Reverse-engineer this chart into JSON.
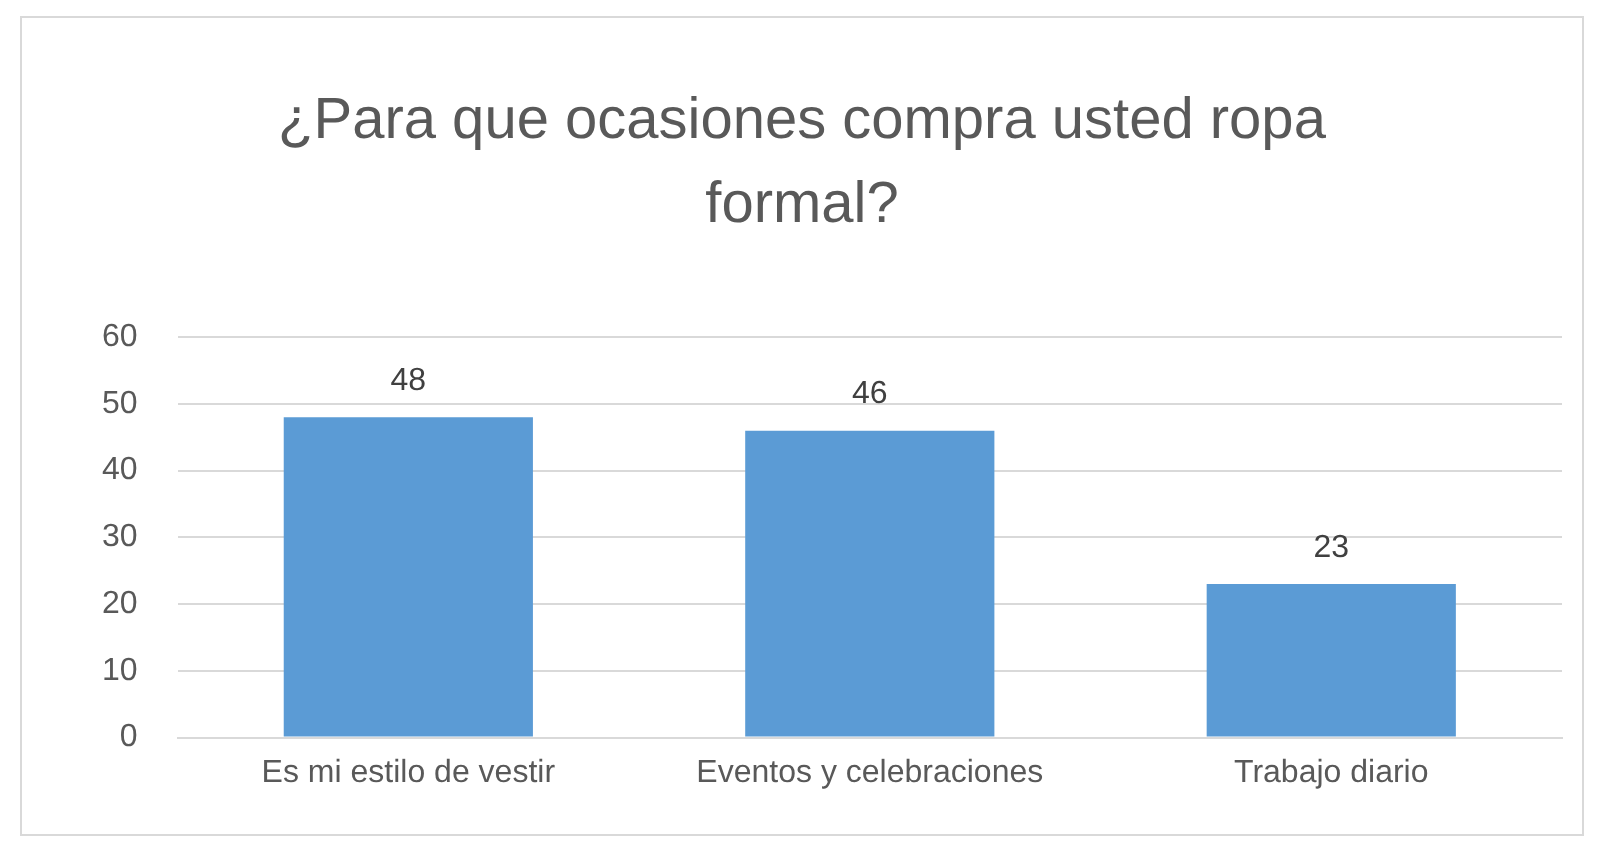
{
  "chart_data": {
    "type": "bar",
    "title": "¿Para que ocasiones compra usted ropa formal?",
    "categories": [
      "Es mi estilo de vestir",
      "Eventos y celebraciones",
      "Trabajo diario"
    ],
    "values": [
      48,
      46,
      23
    ],
    "color": "#5b9bd5",
    "ylim": [
      0,
      60
    ],
    "yticks": [
      0,
      10,
      20,
      30,
      40,
      50,
      60
    ],
    "grid": "y",
    "data_labels": true
  }
}
